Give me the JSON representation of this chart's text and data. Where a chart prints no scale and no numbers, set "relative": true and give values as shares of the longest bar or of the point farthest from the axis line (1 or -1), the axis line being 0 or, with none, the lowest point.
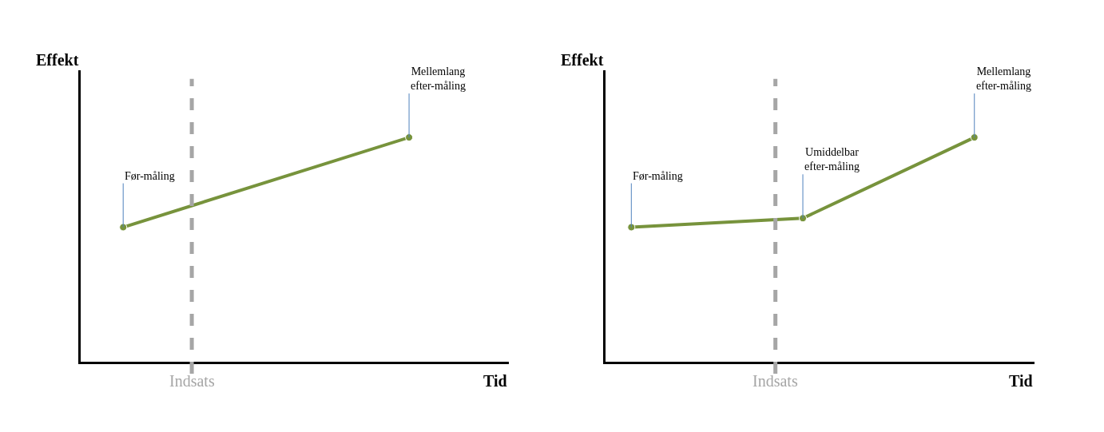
{
  "chart_data": [
    {
      "type": "line",
      "xlabel": "Tid",
      "ylabel": "Effekt",
      "relative": true,
      "categories": [
        null,
        null
      ],
      "marker": "circle",
      "series": [
        {
          "color": "#77933c",
          "values": [
            0.6,
            1
          ]
        }
      ],
      "annotations": [
        "Før-måling",
        "Mellemlang\nefter-måling",
        "Indsats"
      ]
    },
    {
      "type": "line",
      "xlabel": "Tid",
      "ylabel": "Effekt",
      "relative": true,
      "categories": [
        null,
        null,
        null
      ],
      "marker": "circle",
      "series": [
        {
          "color": "#77933c",
          "values": [
            0.6,
            0.64,
            1
          ]
        }
      ],
      "annotations": [
        "Før-måling",
        "Umiddelbar\nefter-måling",
        "Mellemlang\nefter-måling",
        "Indsats"
      ]
    }
  ]
}
